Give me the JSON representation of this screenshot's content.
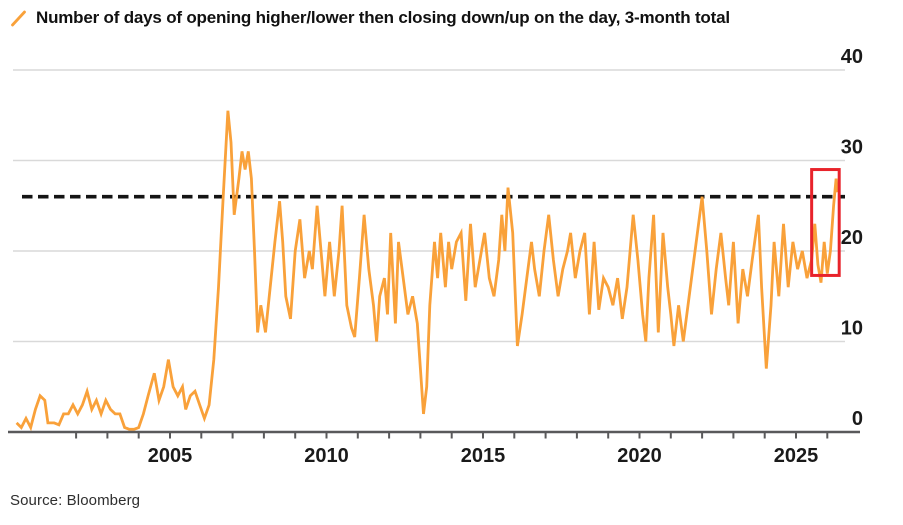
{
  "legend": {
    "marker": "slash-icon",
    "label": "Number of days of opening higher/lower then closing down/up on the day, 3-month total"
  },
  "footer": {
    "source": "Source: Bloomberg"
  },
  "colors": {
    "series": "#F9A13A",
    "grid": "#D9D9D9",
    "axis": "#59595B",
    "text": "#1A1A1A",
    "threshold": "#141414",
    "highlight": "#E8232B",
    "background": "#FFFFFF"
  },
  "chart_data": {
    "type": "line",
    "title": "Number of days of opening higher/lower then closing down/up on the day, 3-month total",
    "xlabel": "",
    "ylabel": "",
    "x_range": [
      2000.05,
      2026.6
    ],
    "y_range": [
      0,
      40
    ],
    "y_ticks": [
      0,
      10,
      20,
      30,
      40
    ],
    "x_ticks": [
      2005,
      2010,
      2015,
      2020,
      2025
    ],
    "minor_x_tick_step_years": 1,
    "grid": true,
    "legend_position": "top-left",
    "threshold_line": {
      "value": 26,
      "style": "dashed",
      "color": "#141414"
    },
    "highlight_box": {
      "x_start_year": 2025.5,
      "x_end_year": 2026.38,
      "y_min_value": 17.3,
      "y_max_value": 29.0,
      "color": "#E8232B"
    },
    "series": [
      {
        "name": "3-month total",
        "color": "#F9A13A",
        "points": [
          [
            2000.1,
            1
          ],
          [
            2000.25,
            0.5
          ],
          [
            2000.4,
            1.5
          ],
          [
            2000.55,
            0.5
          ],
          [
            2000.7,
            2.5
          ],
          [
            2000.85,
            4
          ],
          [
            2001.0,
            3.5
          ],
          [
            2001.1,
            1
          ],
          [
            2001.3,
            1
          ],
          [
            2001.45,
            0.8
          ],
          [
            2001.6,
            2
          ],
          [
            2001.75,
            2
          ],
          [
            2001.9,
            3
          ],
          [
            2002.05,
            2
          ],
          [
            2002.2,
            3
          ],
          [
            2002.35,
            4.5
          ],
          [
            2002.5,
            2.5
          ],
          [
            2002.65,
            3.5
          ],
          [
            2002.8,
            2
          ],
          [
            2002.95,
            3.5
          ],
          [
            2003.1,
            2.5
          ],
          [
            2003.25,
            2
          ],
          [
            2003.4,
            2
          ],
          [
            2003.55,
            0.5
          ],
          [
            2003.7,
            0.3
          ],
          [
            2003.85,
            0.3
          ],
          [
            2004.0,
            0.5
          ],
          [
            2004.15,
            2
          ],
          [
            2004.3,
            4
          ],
          [
            2004.5,
            6.5
          ],
          [
            2004.65,
            3.5
          ],
          [
            2004.8,
            5
          ],
          [
            2004.95,
            8
          ],
          [
            2005.1,
            5
          ],
          [
            2005.25,
            4
          ],
          [
            2005.4,
            5
          ],
          [
            2005.5,
            2.5
          ],
          [
            2005.65,
            4
          ],
          [
            2005.8,
            4.5
          ],
          [
            2005.95,
            3
          ],
          [
            2006.1,
            1.5
          ],
          [
            2006.25,
            3
          ],
          [
            2006.4,
            8
          ],
          [
            2006.55,
            16
          ],
          [
            2006.7,
            26
          ],
          [
            2006.85,
            35.5
          ],
          [
            2006.95,
            32
          ],
          [
            2007.05,
            24
          ],
          [
            2007.2,
            28
          ],
          [
            2007.3,
            31
          ],
          [
            2007.4,
            29
          ],
          [
            2007.5,
            31
          ],
          [
            2007.6,
            28
          ],
          [
            2007.7,
            20
          ],
          [
            2007.8,
            11
          ],
          [
            2007.9,
            14
          ],
          [
            2008.05,
            11
          ],
          [
            2008.2,
            16
          ],
          [
            2008.35,
            21
          ],
          [
            2008.5,
            25.5
          ],
          [
            2008.6,
            21
          ],
          [
            2008.7,
            15
          ],
          [
            2008.85,
            12.5
          ],
          [
            2009.0,
            20
          ],
          [
            2009.15,
            23.5
          ],
          [
            2009.3,
            17
          ],
          [
            2009.45,
            20
          ],
          [
            2009.55,
            18
          ],
          [
            2009.7,
            25
          ],
          [
            2009.85,
            19
          ],
          [
            2009.95,
            15
          ],
          [
            2010.1,
            21
          ],
          [
            2010.25,
            15
          ],
          [
            2010.4,
            20
          ],
          [
            2010.5,
            25
          ],
          [
            2010.65,
            14
          ],
          [
            2010.8,
            11.5
          ],
          [
            2010.9,
            10.5
          ],
          [
            2011.05,
            17
          ],
          [
            2011.2,
            24
          ],
          [
            2011.35,
            18
          ],
          [
            2011.5,
            14
          ],
          [
            2011.6,
            10
          ],
          [
            2011.7,
            15
          ],
          [
            2011.85,
            17
          ],
          [
            2011.95,
            13
          ],
          [
            2012.05,
            22
          ],
          [
            2012.2,
            12
          ],
          [
            2012.3,
            21
          ],
          [
            2012.45,
            17
          ],
          [
            2012.6,
            13
          ],
          [
            2012.75,
            15
          ],
          [
            2012.9,
            12
          ],
          [
            2013.0,
            7
          ],
          [
            2013.1,
            2
          ],
          [
            2013.2,
            5
          ],
          [
            2013.3,
            14
          ],
          [
            2013.45,
            21
          ],
          [
            2013.55,
            17
          ],
          [
            2013.65,
            22
          ],
          [
            2013.8,
            16
          ],
          [
            2013.9,
            21
          ],
          [
            2014.0,
            18
          ],
          [
            2014.15,
            21
          ],
          [
            2014.3,
            22
          ],
          [
            2014.45,
            14.5
          ],
          [
            2014.6,
            23
          ],
          [
            2014.75,
            16
          ],
          [
            2014.9,
            19
          ],
          [
            2015.05,
            22
          ],
          [
            2015.2,
            17
          ],
          [
            2015.35,
            15
          ],
          [
            2015.5,
            19
          ],
          [
            2015.6,
            24
          ],
          [
            2015.7,
            20
          ],
          [
            2015.8,
            27
          ],
          [
            2015.95,
            22
          ],
          [
            2016.1,
            9.5
          ],
          [
            2016.25,
            13
          ],
          [
            2016.4,
            17
          ],
          [
            2016.55,
            21
          ],
          [
            2016.65,
            18
          ],
          [
            2016.8,
            15
          ],
          [
            2016.95,
            20
          ],
          [
            2017.1,
            24
          ],
          [
            2017.25,
            19
          ],
          [
            2017.4,
            15
          ],
          [
            2017.55,
            18
          ],
          [
            2017.7,
            20
          ],
          [
            2017.8,
            22
          ],
          [
            2017.95,
            17
          ],
          [
            2018.1,
            20
          ],
          [
            2018.25,
            22
          ],
          [
            2018.4,
            13
          ],
          [
            2018.55,
            21
          ],
          [
            2018.7,
            13.5
          ],
          [
            2018.85,
            17
          ],
          [
            2019.0,
            16
          ],
          [
            2019.15,
            14
          ],
          [
            2019.3,
            17
          ],
          [
            2019.45,
            12.5
          ],
          [
            2019.6,
            16
          ],
          [
            2019.8,
            24
          ],
          [
            2019.95,
            19
          ],
          [
            2020.1,
            13
          ],
          [
            2020.2,
            10
          ],
          [
            2020.3,
            17
          ],
          [
            2020.45,
            24
          ],
          [
            2020.6,
            11
          ],
          [
            2020.75,
            22
          ],
          [
            2020.9,
            16
          ],
          [
            2021.0,
            13
          ],
          [
            2021.1,
            9.5
          ],
          [
            2021.25,
            14
          ],
          [
            2021.4,
            10
          ],
          [
            2021.55,
            14
          ],
          [
            2021.7,
            18
          ],
          [
            2021.85,
            22
          ],
          [
            2022.0,
            26
          ],
          [
            2022.15,
            20
          ],
          [
            2022.3,
            13
          ],
          [
            2022.45,
            18
          ],
          [
            2022.6,
            22
          ],
          [
            2022.75,
            17
          ],
          [
            2022.85,
            14
          ],
          [
            2023.0,
            21
          ],
          [
            2023.15,
            12
          ],
          [
            2023.3,
            18
          ],
          [
            2023.45,
            15
          ],
          [
            2023.6,
            19
          ],
          [
            2023.8,
            24
          ],
          [
            2023.9,
            16
          ],
          [
            2024.05,
            7
          ],
          [
            2024.2,
            14
          ],
          [
            2024.3,
            21
          ],
          [
            2024.45,
            15
          ],
          [
            2024.6,
            23
          ],
          [
            2024.75,
            16
          ],
          [
            2024.9,
            21
          ],
          [
            2025.05,
            18
          ],
          [
            2025.2,
            20
          ],
          [
            2025.35,
            17
          ],
          [
            2025.5,
            19
          ],
          [
            2025.6,
            23
          ],
          [
            2025.7,
            18.5
          ],
          [
            2025.8,
            16.5
          ],
          [
            2025.9,
            21
          ],
          [
            2026.0,
            17.5
          ],
          [
            2026.1,
            20
          ],
          [
            2026.2,
            25
          ],
          [
            2026.28,
            28
          ],
          [
            2026.33,
            26.5
          ]
        ]
      }
    ]
  }
}
